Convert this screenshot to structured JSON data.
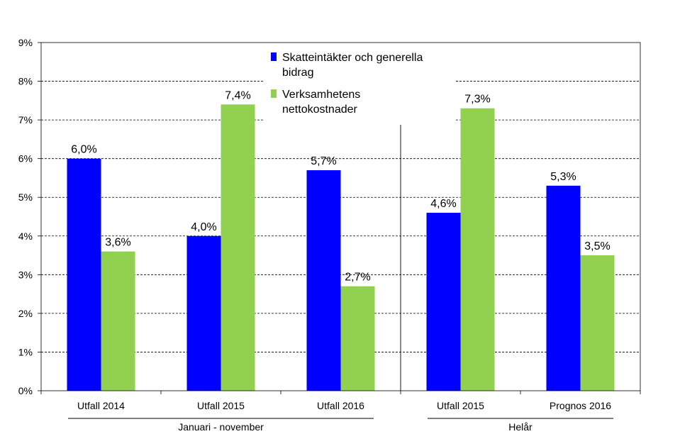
{
  "chart_data": {
    "type": "bar",
    "categories": [
      "Utfall 2014",
      "Utfall 2015",
      "Utfall 2016",
      "Utfall 2015",
      "Prognos 2016"
    ],
    "groups": [
      {
        "label": "Januari - november",
        "categories": [
          0,
          1,
          2
        ]
      },
      {
        "label": "Helår",
        "categories": [
          3,
          4
        ]
      }
    ],
    "series": [
      {
        "name": "Skatteintäkter och generella bidrag",
        "legend_lines": [
          "Skatteintäkter och generella",
          "bidrag"
        ],
        "color": "#0000FF",
        "values": [
          6.0,
          4.0,
          5.7,
          4.6,
          5.3
        ],
        "labels": [
          "6,0%",
          "4,0%",
          "5,7%",
          "4,6%",
          "5,3%"
        ]
      },
      {
        "name": "Verksamhetens nettokostnader",
        "legend_lines": [
          "Verksamhetens",
          "nettokostnader"
        ],
        "color": "#92D050",
        "values": [
          3.6,
          7.4,
          2.7,
          7.3,
          3.5
        ],
        "labels": [
          "3,6%",
          "7,4%",
          "2,7%",
          "7,3%",
          "3,5%"
        ]
      }
    ],
    "ylim": [
      0,
      9
    ],
    "y_ticks": [
      "0%",
      "1%",
      "2%",
      "3%",
      "4%",
      "5%",
      "6%",
      "7%",
      "8%",
      "9%"
    ],
    "grid": "horizontal dashed",
    "legend_position": "top-center",
    "title": "",
    "xlabel": "",
    "ylabel": ""
  }
}
